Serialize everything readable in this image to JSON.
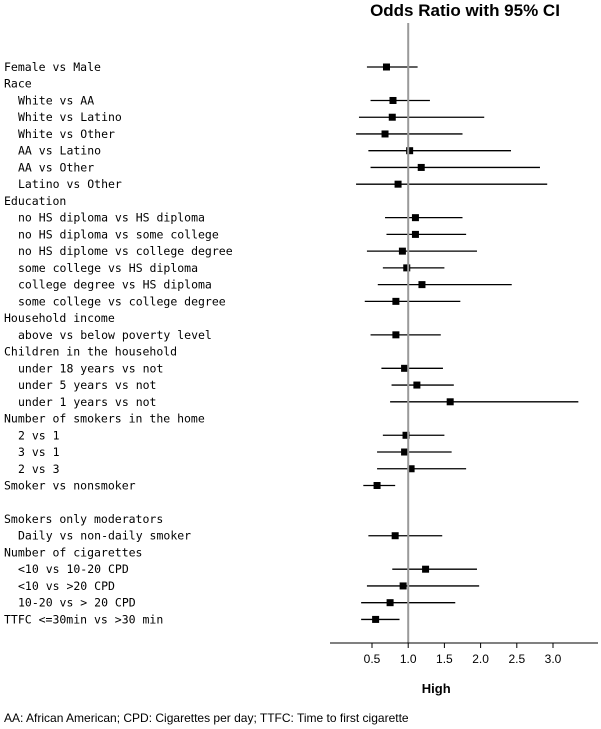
{
  "chart_data": {
    "type": "forest",
    "title": "Odds Ratio with 95% CI",
    "xlabel": "High",
    "reference_line": 1.0,
    "xlim": [
      0.2,
      3.5
    ],
    "x_ticks": [
      0.5,
      1.0,
      1.5,
      2.0,
      2.5,
      3.0
    ],
    "x_tick_labels": [
      "0.5",
      "1.0",
      "1.5",
      "2.0",
      "2.5",
      "3.0"
    ],
    "rows": [
      {
        "label": "Female vs Male",
        "indent": 0,
        "or": 0.7,
        "lo": 0.43,
        "hi": 1.13
      },
      {
        "label": "Race",
        "indent": 0
      },
      {
        "label": "White vs AA",
        "indent": 1,
        "or": 0.79,
        "lo": 0.48,
        "hi": 1.3
      },
      {
        "label": "White vs Latino",
        "indent": 1,
        "or": 0.78,
        "lo": 0.32,
        "hi": 2.05
      },
      {
        "label": "White vs Other",
        "indent": 1,
        "or": 0.68,
        "lo": 0.28,
        "hi": 1.75
      },
      {
        "label": "AA vs Latino",
        "indent": 1,
        "or": 1.02,
        "lo": 0.45,
        "hi": 2.42
      },
      {
        "label": "AA vs Other",
        "indent": 1,
        "or": 1.18,
        "lo": 0.48,
        "hi": 2.82
      },
      {
        "label": "Latino vs Other",
        "indent": 1,
        "or": 0.86,
        "lo": 0.28,
        "hi": 2.92
      },
      {
        "label": "Education",
        "indent": 0
      },
      {
        "label": "no HS diploma vs HS diploma",
        "indent": 1,
        "or": 1.1,
        "lo": 0.68,
        "hi": 1.75
      },
      {
        "label": "no HS diploma vs some college",
        "indent": 1,
        "or": 1.1,
        "lo": 0.7,
        "hi": 1.8
      },
      {
        "label": "no HS diplome vs college degree",
        "indent": 1,
        "or": 0.92,
        "lo": 0.43,
        "hi": 1.95
      },
      {
        "label": "some college vs HS diploma",
        "indent": 1,
        "or": 0.98,
        "lo": 0.65,
        "hi": 1.5
      },
      {
        "label": "college degree vs HS diploma",
        "indent": 1,
        "or": 1.19,
        "lo": 0.58,
        "hi": 2.43
      },
      {
        "label": "some college vs college degree",
        "indent": 1,
        "or": 0.83,
        "lo": 0.4,
        "hi": 1.72
      },
      {
        "label": "Household income",
        "indent": 0
      },
      {
        "label": "above vs below poverty level",
        "indent": 1,
        "or": 0.83,
        "lo": 0.48,
        "hi": 1.45
      },
      {
        "label": "Children in the household",
        "indent": 0
      },
      {
        "label": "under 18 years vs not",
        "indent": 1,
        "or": 0.95,
        "lo": 0.63,
        "hi": 1.48
      },
      {
        "label": "under 5 years vs not",
        "indent": 1,
        "or": 1.12,
        "lo": 0.77,
        "hi": 1.63
      },
      {
        "label": "under 1 years vs not",
        "indent": 1,
        "or": 1.58,
        "lo": 0.75,
        "hi": 3.35
      },
      {
        "label": "Number of smokers in the home",
        "indent": 0
      },
      {
        "label": "2 vs 1",
        "indent": 1,
        "or": 0.97,
        "lo": 0.65,
        "hi": 1.5
      },
      {
        "label": "3 vs 1",
        "indent": 1,
        "or": 0.95,
        "lo": 0.57,
        "hi": 1.6
      },
      {
        "label": "2 vs 3",
        "indent": 1,
        "or": 1.04,
        "lo": 0.57,
        "hi": 1.8
      },
      {
        "label": "Smoker vs nonsmoker",
        "indent": 0,
        "or": 0.57,
        "lo": 0.38,
        "hi": 0.82
      },
      {
        "label": "",
        "indent": 0
      },
      {
        "label": "Smokers only moderators",
        "indent": 0
      },
      {
        "label": "Daily vs non-daily smoker",
        "indent": 1,
        "or": 0.82,
        "lo": 0.45,
        "hi": 1.47
      },
      {
        "label": "Number of cigarettes",
        "indent": 0
      },
      {
        "label": "<10 vs 10-20 CPD",
        "indent": 1,
        "or": 1.24,
        "lo": 0.78,
        "hi": 1.95
      },
      {
        "label": "<10 vs >20 CPD",
        "indent": 1,
        "or": 0.93,
        "lo": 0.43,
        "hi": 1.98
      },
      {
        "label": "10-20 vs > 20 CPD",
        "indent": 1,
        "or": 0.75,
        "lo": 0.35,
        "hi": 1.65
      },
      {
        "label": "TTFC <=30min vs >30 min",
        "indent": 0,
        "or": 0.55,
        "lo": 0.35,
        "hi": 0.88
      }
    ],
    "footnote": "AA: African American; CPD: Cigarettes per day; TTFC: Time to first cigarette"
  }
}
